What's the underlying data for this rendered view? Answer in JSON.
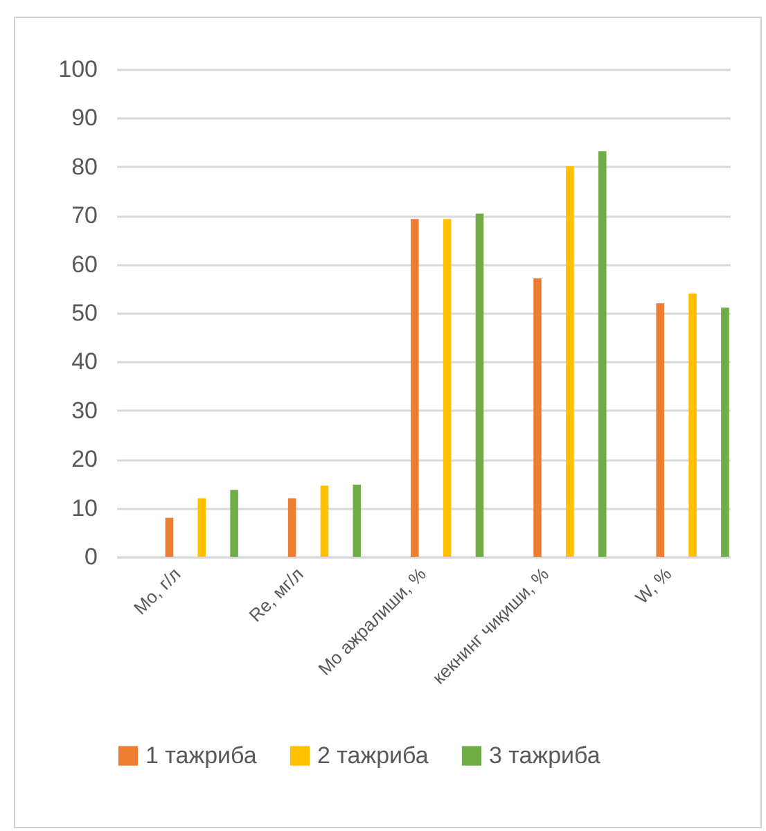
{
  "chart_data": {
    "type": "bar",
    "categories": [
      "Mo, г/л",
      "Re, мг/л",
      "Mo ажралиши, %",
      "кекнинг чиқиши, %",
      "W, %"
    ],
    "series": [
      {
        "name": "1 тажриба",
        "color": "#ed7d31",
        "values": [
          8,
          12,
          69.3,
          57.1,
          52
        ]
      },
      {
        "name": "2 тажриба",
        "color": "#ffc000",
        "values": [
          12,
          14.6,
          69.3,
          80.1,
          54
        ]
      },
      {
        "name": "3 тажриба",
        "color": "#70ad47",
        "values": [
          13.7,
          14.8,
          70.4,
          83.2,
          51.1
        ]
      }
    ],
    "ylim": [
      0,
      100
    ],
    "yticks": [
      0,
      10,
      20,
      30,
      40,
      50,
      60,
      70,
      80,
      90,
      100
    ],
    "grid": "y",
    "legend": "bottom"
  }
}
